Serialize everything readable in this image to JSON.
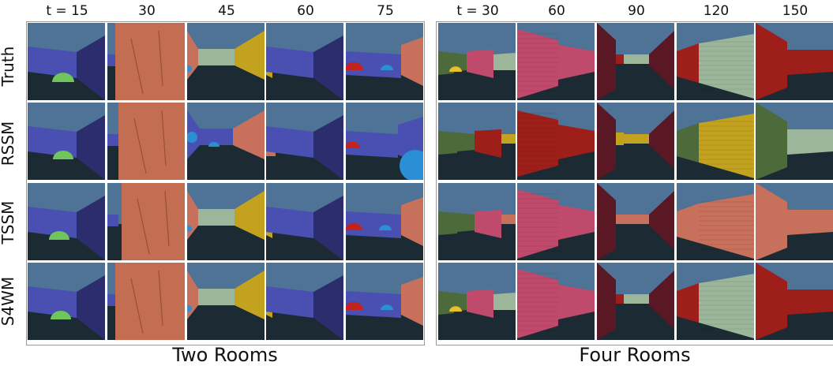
{
  "row_labels": [
    "Truth",
    "RSSM",
    "TSSM",
    "S4WM"
  ],
  "panels": [
    {
      "title": "Two Rooms",
      "column_labels": [
        "t = 15",
        "30",
        "45",
        "60",
        "75"
      ]
    },
    {
      "title": "Four Rooms",
      "column_labels": [
        "t = 30",
        "60",
        "90",
        "120",
        "150"
      ]
    }
  ],
  "colors": {
    "sky": "#4e7396",
    "floor": "#1b2a33",
    "blue_wall": "#4a4fb2",
    "dark_blue_wall": "#2c2d6c",
    "green_wall": "#9bb69a",
    "yellow_wall": "#c2a21f",
    "salmon_wall": "#c7705b",
    "brick": "#c36d53",
    "pink_wall": "#c04a6c",
    "red_wall": "#9e1f1a",
    "dark_red_wall": "#5a1724",
    "olive_wall": "#4d6a3a",
    "green_ball": "#6fc45c",
    "blue_ball": "#2a8fd4",
    "red_ball": "#c2231d",
    "yellow_ball": "#e6c22a"
  }
}
